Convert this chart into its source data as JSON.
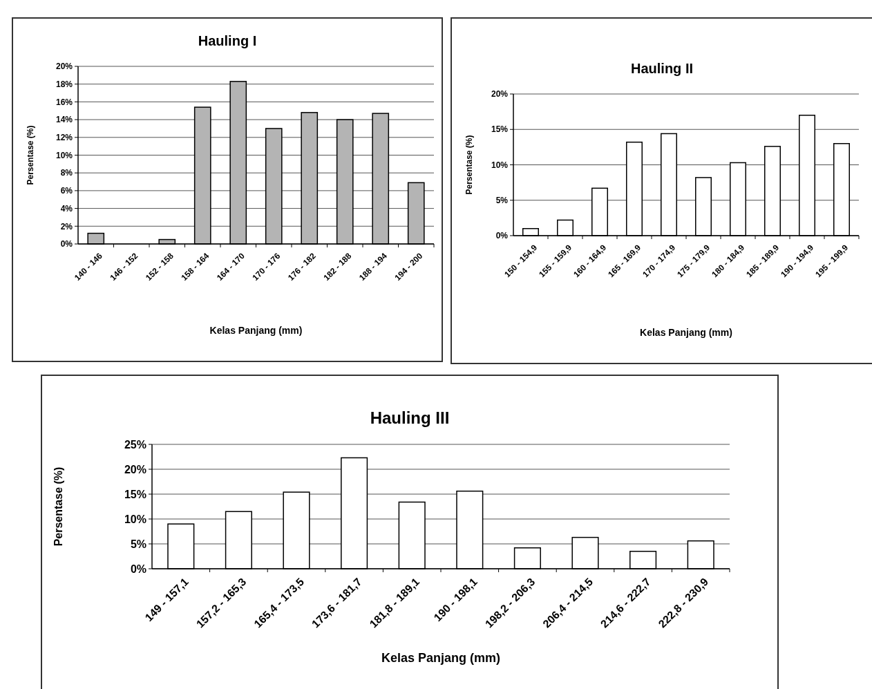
{
  "chart_data": [
    {
      "type": "bar",
      "title": "Hauling I",
      "xlabel": "Kelas Panjang (mm)",
      "ylabel": "Persentase (%)",
      "categories": [
        "140 - 146",
        "146 - 152",
        "152 - 158",
        "158 - 164",
        "164 - 170",
        "170 - 176",
        "176 - 182",
        "182 - 188",
        "188 - 194",
        "194 - 200"
      ],
      "values": [
        1.2,
        0,
        0.5,
        15.4,
        18.3,
        13.0,
        14.8,
        14.0,
        14.7,
        6.9
      ],
      "color": "#b4b4b4",
      "ylim": [
        0,
        20
      ],
      "yticks": [
        {
          "value": 0,
          "label": "0%"
        },
        {
          "value": 2,
          "label": "2%"
        },
        {
          "value": 4,
          "label": "4%"
        },
        {
          "value": 6,
          "label": "6%"
        },
        {
          "value": 8,
          "label": "8%"
        },
        {
          "value": 10,
          "label": "10%"
        },
        {
          "value": 12,
          "label": "12%"
        },
        {
          "value": 14,
          "label": "14%"
        },
        {
          "value": 16,
          "label": "16%"
        },
        {
          "value": 18,
          "label": "18%"
        },
        {
          "value": 20,
          "label": "20%"
        }
      ],
      "grid": "y"
    },
    {
      "type": "bar",
      "title": "Hauling II",
      "xlabel": "Kelas Panjang (mm)",
      "ylabel": "Persentase (%)",
      "categories": [
        "150 - 154,9",
        "155 - 159,9",
        "160 - 164,9",
        "165 - 169,9",
        "170 - 174,9",
        "175 - 179,9",
        "180 - 184,9",
        "185 - 189,9",
        "190 - 194,9",
        "195 - 199,9"
      ],
      "values": [
        1.0,
        2.2,
        6.7,
        13.2,
        14.4,
        8.2,
        10.3,
        12.6,
        17.0,
        13.0
      ],
      "color": "#ffffff",
      "ylim": [
        0,
        20
      ],
      "yticks": [
        {
          "value": 0,
          "label": "0%"
        },
        {
          "value": 5,
          "label": "5%"
        },
        {
          "value": 10,
          "label": "10%"
        },
        {
          "value": 15,
          "label": "15%"
        },
        {
          "value": 20,
          "label": "20%"
        }
      ],
      "grid": "y"
    },
    {
      "type": "bar",
      "title": "Hauling III",
      "xlabel": "Kelas Panjang (mm)",
      "ylabel": "Persentase (%)",
      "categories": [
        "149 - 157,1",
        "157,2 - 165,3",
        "165,4 - 173,5",
        "173,6 - 181,7",
        "181,8 - 189,1",
        "190 - 198,1",
        "198,2 - 206,3",
        "206,4 - 214,5",
        "214,6 - 222,7",
        "222,8 - 230,9"
      ],
      "values": [
        9.0,
        11.5,
        15.4,
        22.3,
        13.4,
        15.6,
        4.2,
        6.3,
        3.5,
        5.6
      ],
      "color": "#ffffff",
      "ylim": [
        0,
        25
      ],
      "yticks": [
        {
          "value": 0,
          "label": "0%"
        },
        {
          "value": 5,
          "label": "5%"
        },
        {
          "value": 10,
          "label": "10%"
        },
        {
          "value": 15,
          "label": "15%"
        },
        {
          "value": 20,
          "label": "20%"
        },
        {
          "value": 25,
          "label": "25%"
        }
      ],
      "grid": "y"
    }
  ]
}
